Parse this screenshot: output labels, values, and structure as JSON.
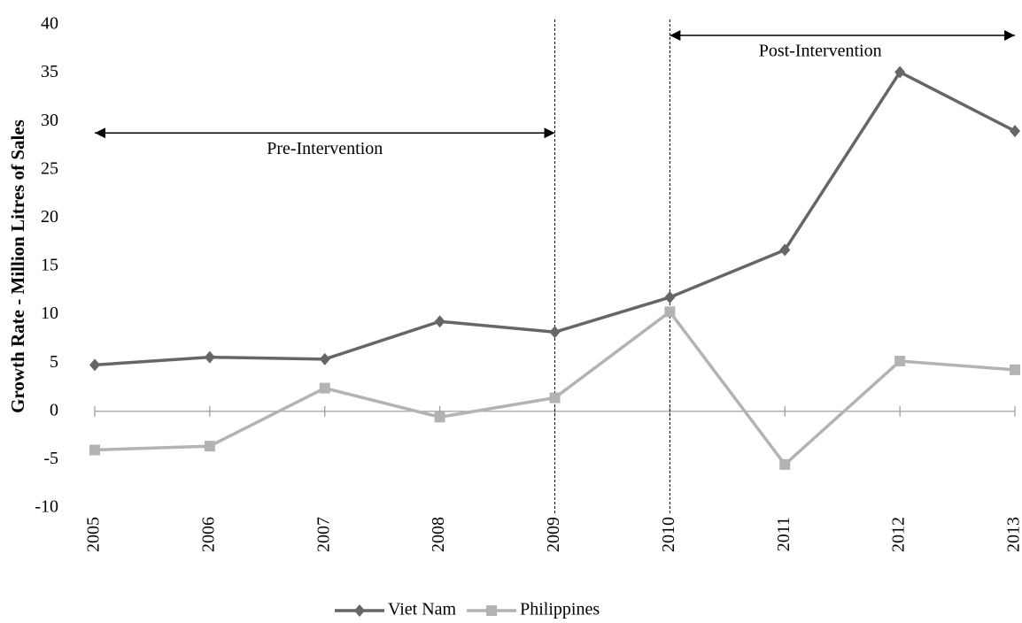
{
  "chart_data": {
    "type": "line",
    "y_label": "Growth Rate - Million Litres of Sales",
    "categories": [
      "2005",
      "2006",
      "2007",
      "2008",
      "2009",
      "2010",
      "2011",
      "2012",
      "2013"
    ],
    "series": [
      {
        "name": "Viet Nam",
        "color": "#666666",
        "marker": "diamond",
        "values": [
          4.8,
          5.6,
          5.4,
          9.3,
          8.2,
          11.8,
          16.7,
          35.1,
          29.0
        ]
      },
      {
        "name": "Philippines",
        "color": "#b3b3b3",
        "marker": "square",
        "values": [
          -4.0,
          -3.6,
          2.4,
          -0.6,
          1.4,
          10.3,
          -5.5,
          5.2,
          4.3
        ]
      }
    ],
    "ylim": [
      -10,
      40
    ],
    "yticks": [
      -10,
      -5,
      0,
      5,
      10,
      15,
      20,
      25,
      30,
      35,
      40
    ],
    "vlines": [
      "2009",
      "2010"
    ],
    "annotations": [
      {
        "text": "Pre-Intervention",
        "from": "2005",
        "to": "2009",
        "y": 28.8
      },
      {
        "text": "Post-Intervention",
        "from": "2010",
        "to": "2013",
        "y": 38.9
      }
    ],
    "grid": false,
    "legend": "bottom"
  }
}
